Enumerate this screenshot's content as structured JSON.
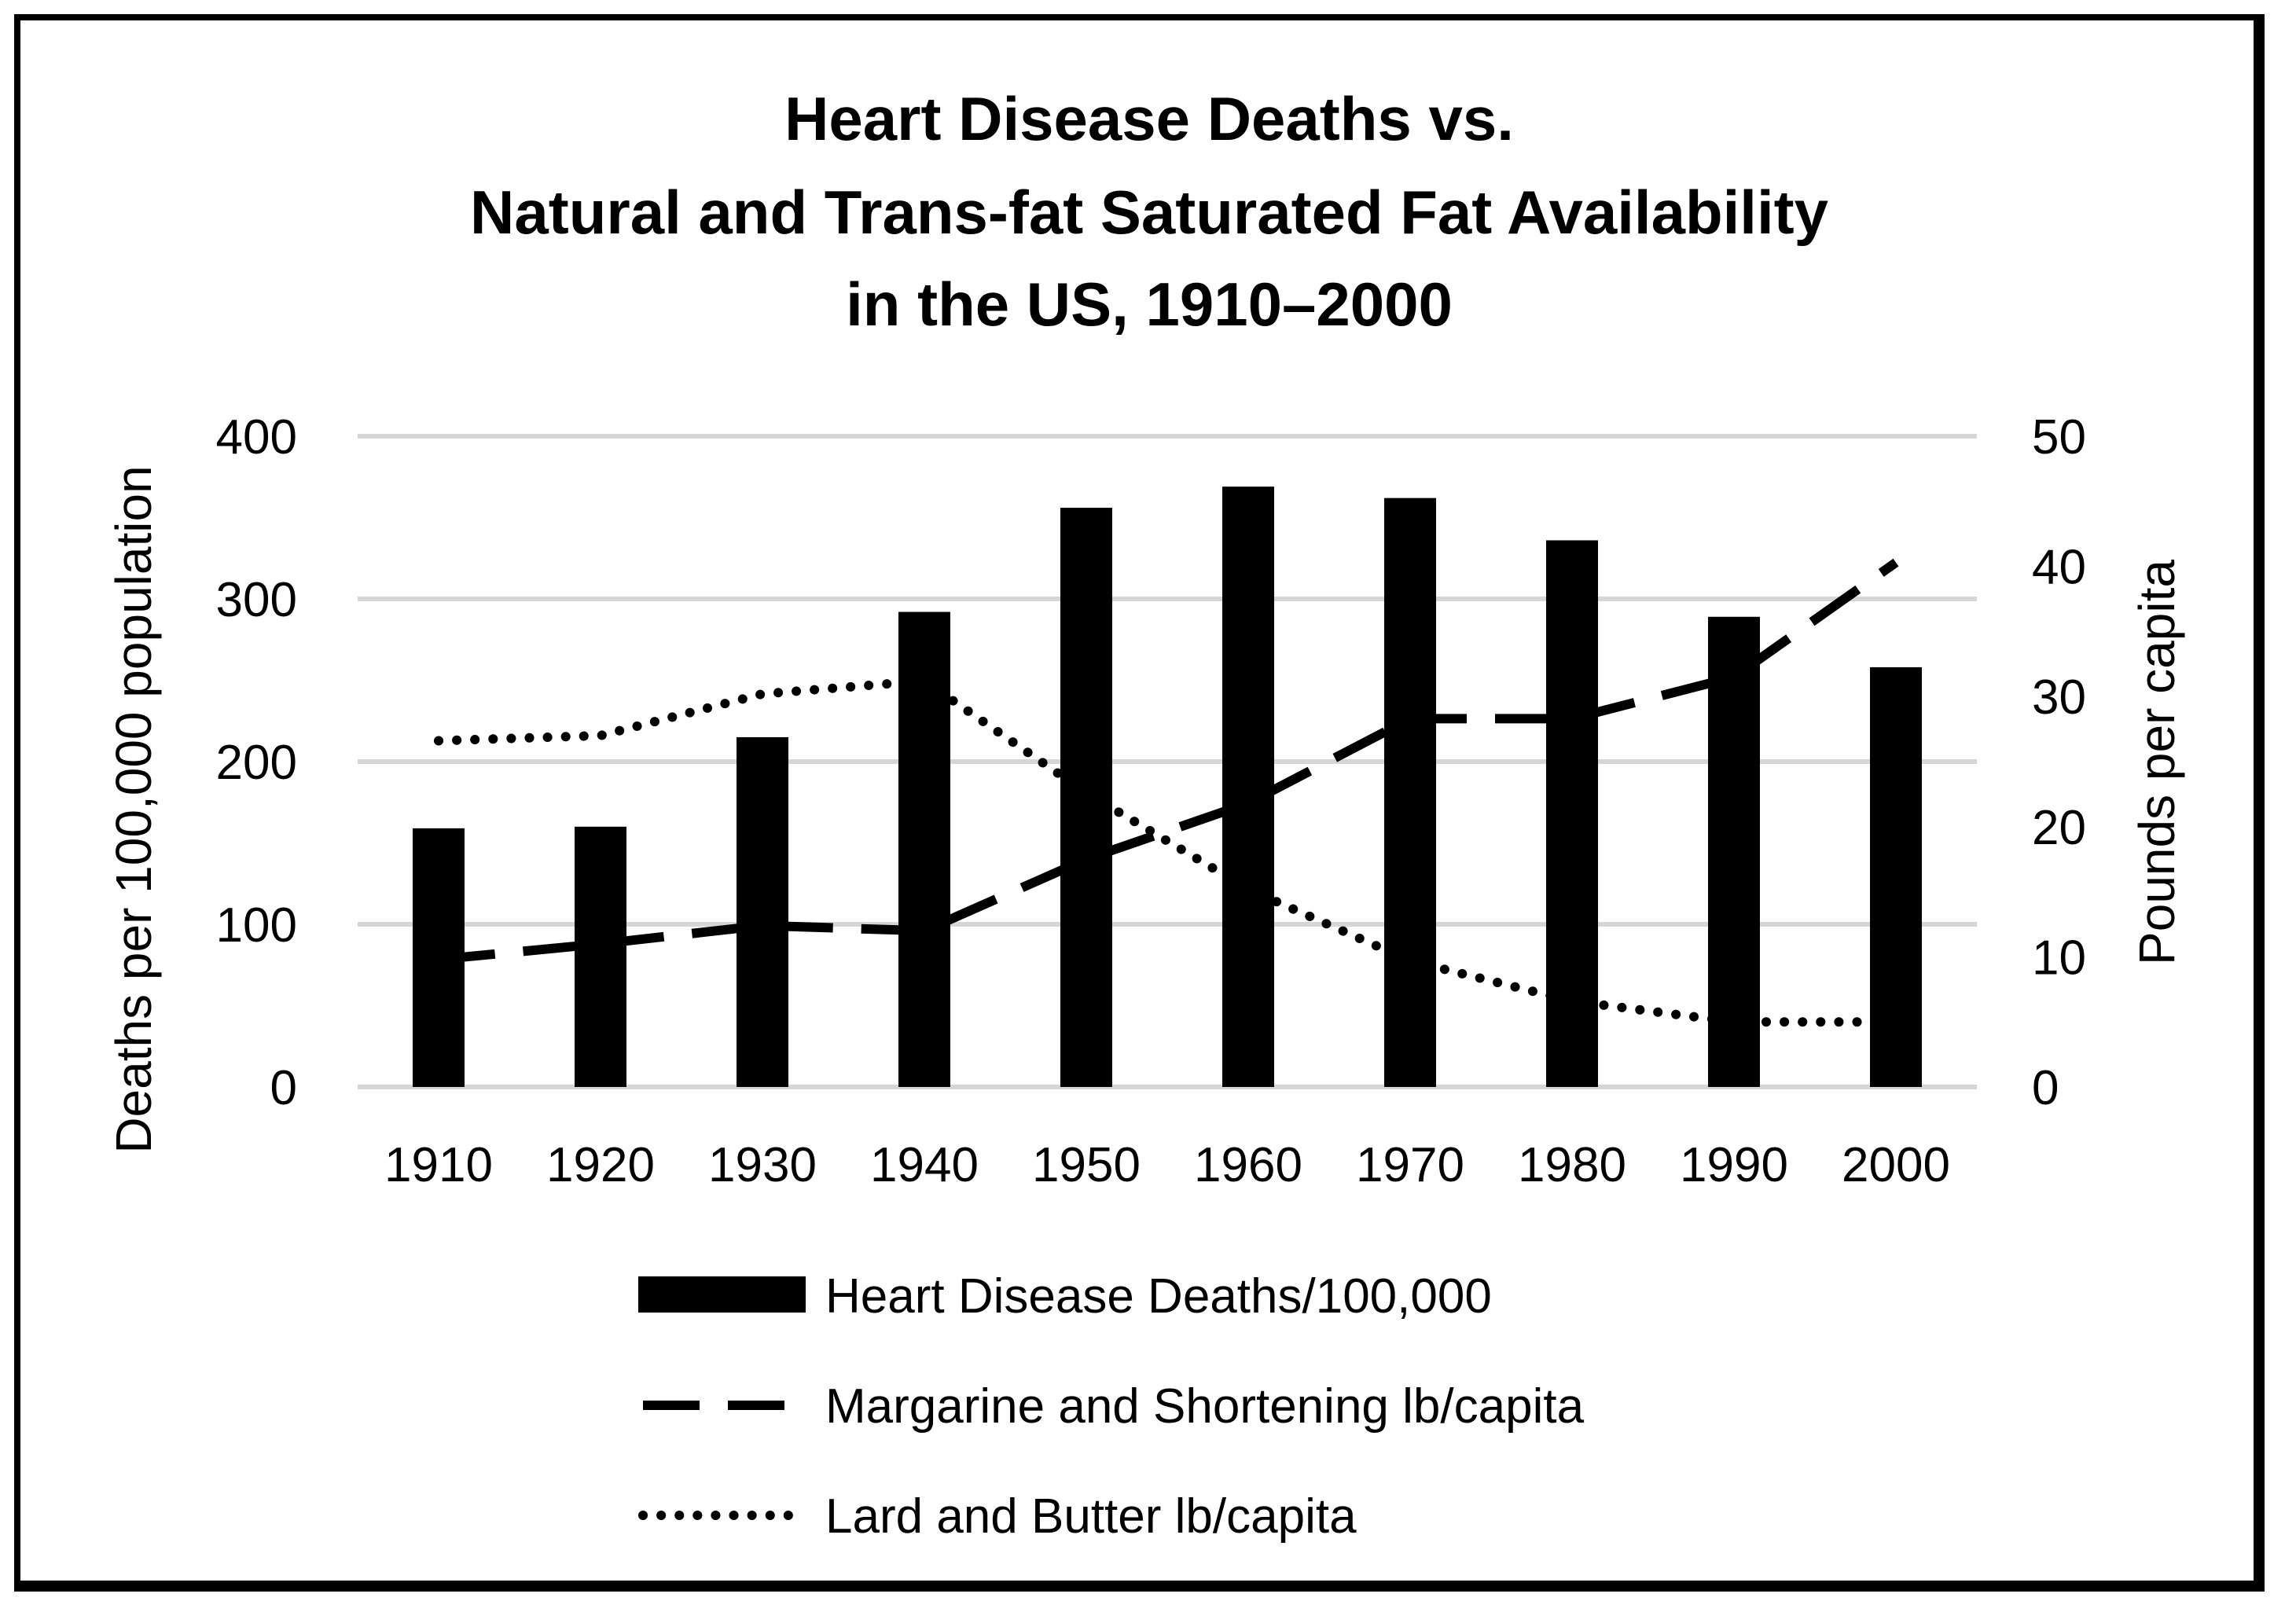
{
  "chart_data": {
    "type": "bar+line",
    "title_lines": [
      "Heart Disease Deaths vs.",
      "Natural and Trans-fat Saturated Fat Availability",
      "in the US, 1910–2000"
    ],
    "categories": [
      "1910",
      "1920",
      "1930",
      "1940",
      "1950",
      "1960",
      "1970",
      "1980",
      "1990",
      "2000"
    ],
    "ylabel_left": "Deaths per 100,000 population",
    "ylabel_right": "Pounds per capita",
    "ylim_left": [
      0,
      400
    ],
    "yticks_left": [
      0,
      100,
      200,
      300,
      400
    ],
    "ylim_right": [
      0,
      50
    ],
    "yticks_right": [
      0,
      10,
      20,
      30,
      40,
      50
    ],
    "grid": true,
    "legend_position": "bottom",
    "series": [
      {
        "name": "Heart Disease Deaths/100,000",
        "kind": "bar",
        "axis": "left",
        "color": "#000000",
        "values": [
          159,
          160,
          215,
          292,
          356,
          369,
          362,
          336,
          289,
          258
        ]
      },
      {
        "name": "Margarine and Shortening lb/capita",
        "kind": "line",
        "style": "dashed",
        "axis": "right",
        "color": "#000000",
        "values": [
          9.8,
          11.0,
          12.4,
          12.0,
          17.5,
          21.8,
          28.3,
          28.3,
          31.5,
          40.3
        ]
      },
      {
        "name": "Lard and Butter lb/capita",
        "kind": "line",
        "style": "dotted",
        "axis": "right",
        "color": "#000000",
        "values": [
          26.6,
          27.0,
          30.2,
          31.2,
          22.6,
          15.2,
          9.7,
          6.6,
          5.0,
          5.0
        ]
      }
    ]
  }
}
